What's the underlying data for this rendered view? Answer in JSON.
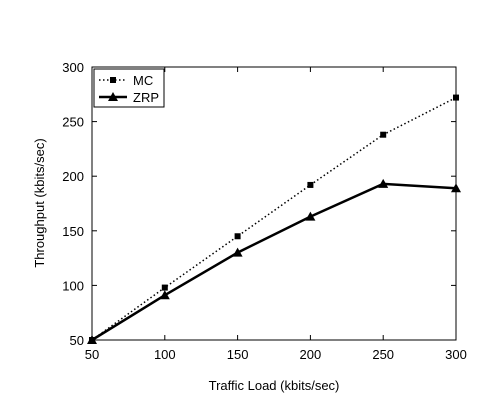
{
  "chart_data": {
    "type": "line",
    "xlabel": "Traffic Load (kbits/sec)",
    "ylabel": "Throughput (kbits/sec)",
    "xlim": [
      50,
      300
    ],
    "ylim": [
      50,
      300
    ],
    "x_ticks": [
      50,
      100,
      150,
      200,
      250,
      300
    ],
    "y_ticks": [
      50,
      100,
      150,
      200,
      250,
      300
    ],
    "x": [
      50,
      100,
      150,
      200,
      250,
      300
    ],
    "series": [
      {
        "name": "MC",
        "values": [
          50,
          98,
          145,
          192,
          238,
          272
        ],
        "line_style": "dotted",
        "marker": "square",
        "color": "#000000"
      },
      {
        "name": "ZRP",
        "values": [
          50,
          91,
          130,
          163,
          193,
          189
        ],
        "line_style": "solid",
        "marker": "triangle",
        "color": "#000000"
      }
    ],
    "legend_position": "top-left",
    "grid": false
  }
}
